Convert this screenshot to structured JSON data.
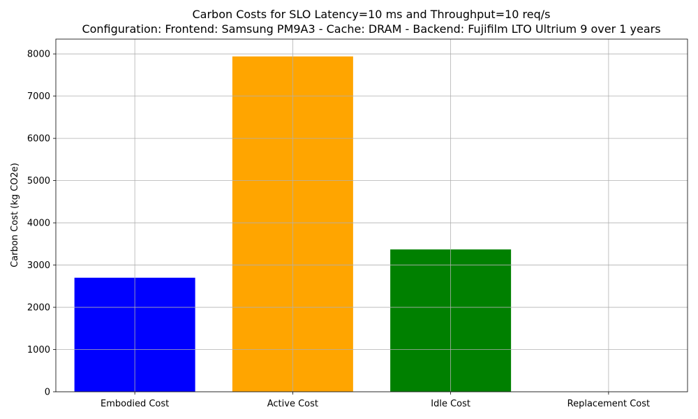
{
  "chart_data": {
    "type": "bar",
    "title": "Carbon Costs for SLO Latency=10 ms and Throughput=10 req/s",
    "subtitle": "Configuration: Frontend: Samsung PM9A3 - Cache: DRAM - Backend: Fujifilm LTO Ultrium 9 over 1 years",
    "xlabel": "",
    "ylabel": "Carbon Cost (kg CO2e)",
    "categories": [
      "Embodied Cost",
      "Active Cost",
      "Idle Cost",
      "Replacement Cost"
    ],
    "values": [
      2700,
      7940,
      3370,
      0
    ],
    "colors": [
      "#0000ff",
      "#ffa500",
      "#008000",
      "#ff0000"
    ],
    "ylim": [
      0,
      8350
    ],
    "yticks": [
      0,
      1000,
      2000,
      3000,
      4000,
      5000,
      6000,
      7000,
      8000
    ],
    "grid": true
  }
}
